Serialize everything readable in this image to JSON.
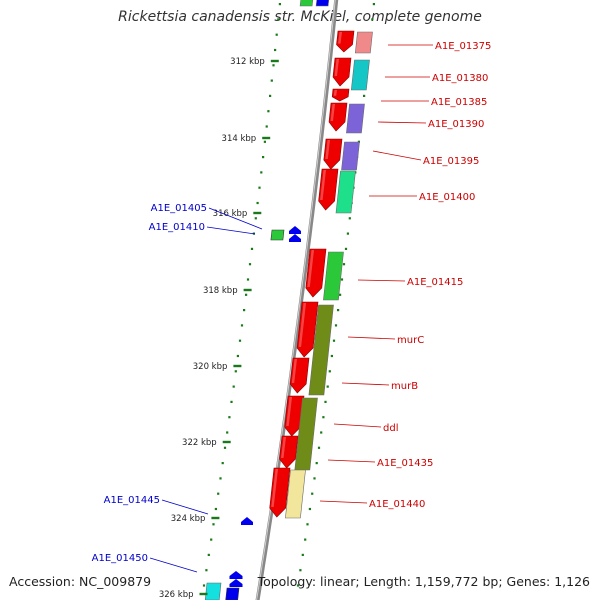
{
  "title": "Rickettsia canadensis str. McKiel, complete genome",
  "footer": {
    "accession": "Accession: NC_009879",
    "summary": "Topology: linear; Length: 1,159,772 bp; Genes: 1,126"
  },
  "ticks": [
    "312 kbp",
    "314 kbp",
    "316 kbp",
    "318 kbp",
    "320 kbp",
    "322 kbp",
    "324 kbp",
    "326 kbp"
  ],
  "forward_labels": [
    "A1E_01375",
    "A1E_01380",
    "A1E_01385",
    "A1E_01390",
    "A1E_01395",
    "A1E_01400",
    "A1E_01415",
    "murC",
    "murB",
    "ddl",
    "A1E_01435",
    "A1E_01440"
  ],
  "reverse_labels": [
    "A1E_01405",
    "A1E_01410",
    "A1E_01445",
    "A1E_01450"
  ],
  "colors": {
    "gene_red": "#ee0000",
    "label_red": "#cc0000",
    "label_blue": "#0000cc",
    "tick_green": "#1a7a1a",
    "reverse_blue": "#0000ee",
    "backbone": "#888888"
  }
}
